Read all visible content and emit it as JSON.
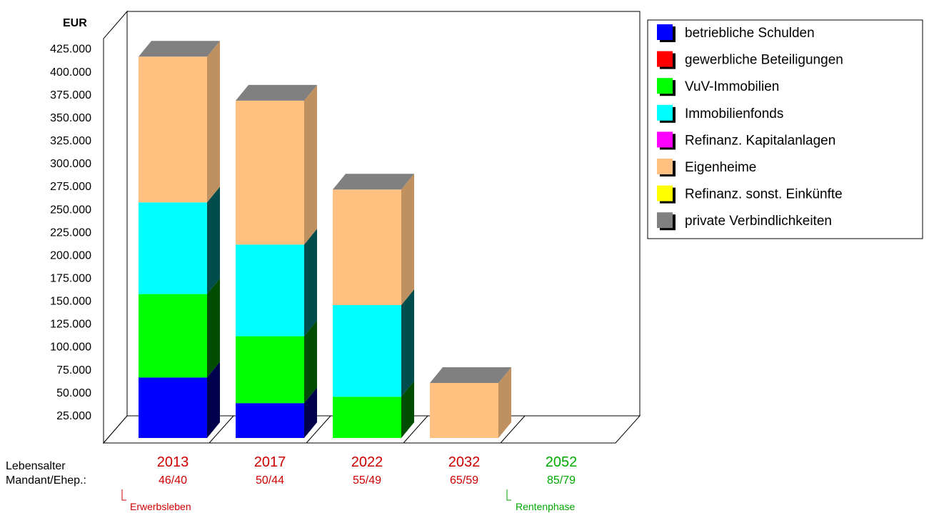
{
  "chart_data": {
    "type": "bar",
    "stacked": true,
    "three_d": true,
    "y_unit": "EUR",
    "ylim": [
      0,
      425000
    ],
    "y_ticks": [
      25000,
      50000,
      75000,
      100000,
      125000,
      150000,
      175000,
      200000,
      225000,
      250000,
      275000,
      300000,
      325000,
      350000,
      375000,
      400000,
      425000
    ],
    "y_tick_labels": [
      "25.000",
      "50.000",
      "75.000",
      "100.000",
      "125.000",
      "150.000",
      "175.000",
      "200.000",
      "225.000",
      "250.000",
      "275.000",
      "300.000",
      "325.000",
      "350.000",
      "375.000",
      "400.000",
      "425.000"
    ],
    "categories": [
      "2013",
      "2017",
      "2022",
      "2032",
      "2052"
    ],
    "legend_position": "top-right",
    "series": [
      {
        "name": "betriebliche Schulden",
        "color": "#0000ff",
        "values": [
          66000,
          38000,
          0,
          0,
          0
        ]
      },
      {
        "name": "gewerbliche Beteiligungen",
        "color": "#ff0000",
        "values": [
          0,
          0,
          0,
          0,
          0
        ]
      },
      {
        "name": "VuV-Immobilien",
        "color": "#00ff00",
        "values": [
          91000,
          73000,
          45000,
          0,
          0
        ]
      },
      {
        "name": "Immobilienfonds",
        "color": "#00ffff",
        "values": [
          100000,
          100000,
          100000,
          0,
          0
        ]
      },
      {
        "name": "Refinanz. Kapitalanlagen",
        "color": "#ff00ff",
        "values": [
          0,
          0,
          0,
          0,
          0
        ]
      },
      {
        "name": "Eigenheime",
        "color": "#ffc080",
        "values": [
          159000,
          157000,
          126000,
          60000,
          0
        ]
      },
      {
        "name": "Refinanz. sonst. Einkünfte",
        "color": "#ffff00",
        "values": [
          0,
          0,
          0,
          0,
          0
        ]
      },
      {
        "name": "private Verbindlichkeiten",
        "color": "#808080",
        "values": [
          0,
          0,
          0,
          0,
          0
        ]
      }
    ]
  },
  "axis_labels": {
    "row1": "Lebensalter",
    "row2": "Mandant/Ehep.:"
  },
  "ages": [
    "46/40",
    "50/44",
    "55/49",
    "65/59",
    "85/79"
  ],
  "phases": {
    "working": "Erwerbsleben",
    "retirement": "Rentenphase"
  },
  "colors": {
    "working_phase": "#cc0000",
    "retirement_phase": "#00aa00"
  }
}
